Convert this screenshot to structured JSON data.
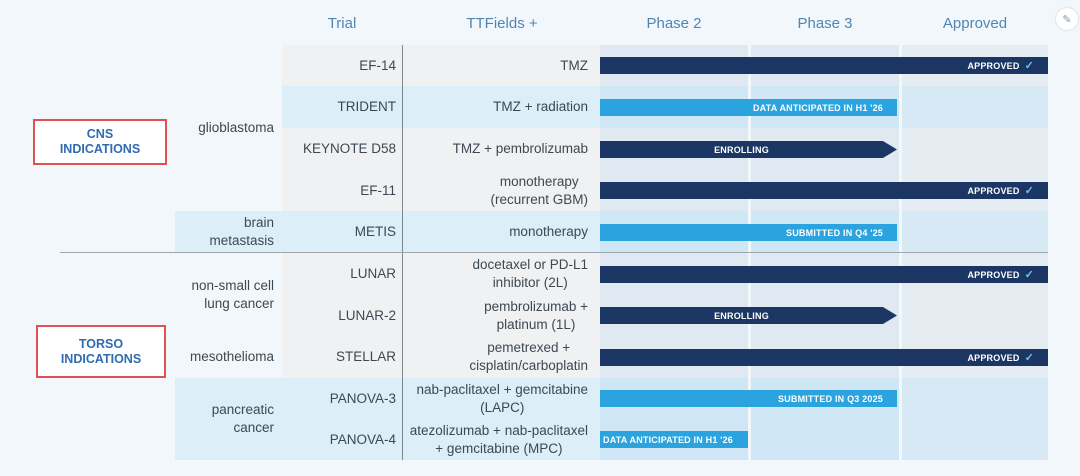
{
  "headers": {
    "trial": "Trial",
    "ttfields": "TTFields +",
    "phase2": "Phase 2",
    "phase3": "Phase 3",
    "approved": "Approved"
  },
  "groups": [
    {
      "label": "CNS\nINDICATIONS"
    },
    {
      "label": "TORSO\nINDICATIONS"
    }
  ],
  "indications": [
    {
      "label": "glioblastoma"
    },
    {
      "label": "brain\nmetastasis"
    },
    {
      "label": "non-small cell\nlung cancer"
    },
    {
      "label": "mesothelioma"
    },
    {
      "label": "pancreatic\ncancer"
    }
  ],
  "rows": [
    {
      "trial": "EF-14",
      "combo": "TMZ",
      "status": "APPROVED",
      "stage": "Approved",
      "check": true
    },
    {
      "trial": "TRIDENT",
      "combo": "TMZ + radiation",
      "status": "DATA ANTICIPATED IN H1 '26",
      "stage": "Phase 3",
      "check": false
    },
    {
      "trial": "KEYNOTE D58",
      "combo": "TMZ + pembrolizumab",
      "status": "ENROLLING",
      "stage": "Phase 3",
      "check": false
    },
    {
      "trial": "EF-11",
      "combo": "monotherapy\n(recurrent GBM)",
      "status": "APPROVED",
      "stage": "Approved",
      "check": true
    },
    {
      "trial": "METIS",
      "combo": "monotherapy",
      "status": "SUBMITTED IN Q4 '25",
      "stage": "Phase 3",
      "check": false
    },
    {
      "trial": "LUNAR",
      "combo": "docetaxel or PD-L1\ninhibitor (2L)",
      "status": "APPROVED",
      "stage": "Approved",
      "check": true
    },
    {
      "trial": "LUNAR-2",
      "combo": "pembrolizumab +\nplatinum (1L)",
      "status": "ENROLLING",
      "stage": "Phase 3",
      "check": false
    },
    {
      "trial": "STELLAR",
      "combo": "pemetrexed +\ncisplatin/carboplatin",
      "status": "APPROVED",
      "stage": "Approved",
      "check": true
    },
    {
      "trial": "PANOVA-3",
      "combo": "nab-paclitaxel + gemcitabine\n(LAPC)",
      "status": "SUBMITTED IN Q3 2025",
      "stage": "Phase 3",
      "check": false
    },
    {
      "trial": "PANOVA-4",
      "combo": "atezolizumab + nab-paclitaxel\n+ gemcitabine (MPC)",
      "status": "DATA ANTICIPATED IN H1 '26",
      "stage": "Phase 2",
      "check": false
    }
  ],
  "colors": {
    "approved_bar": "#1b3662",
    "pending_bar": "#2aa3de",
    "header_text": "#4f86b4",
    "group_box_border": "#e05252",
    "group_box_text": "#2f6bb0"
  },
  "icons": {
    "check": "checkmark-icon",
    "corner": "expand-icon"
  }
}
